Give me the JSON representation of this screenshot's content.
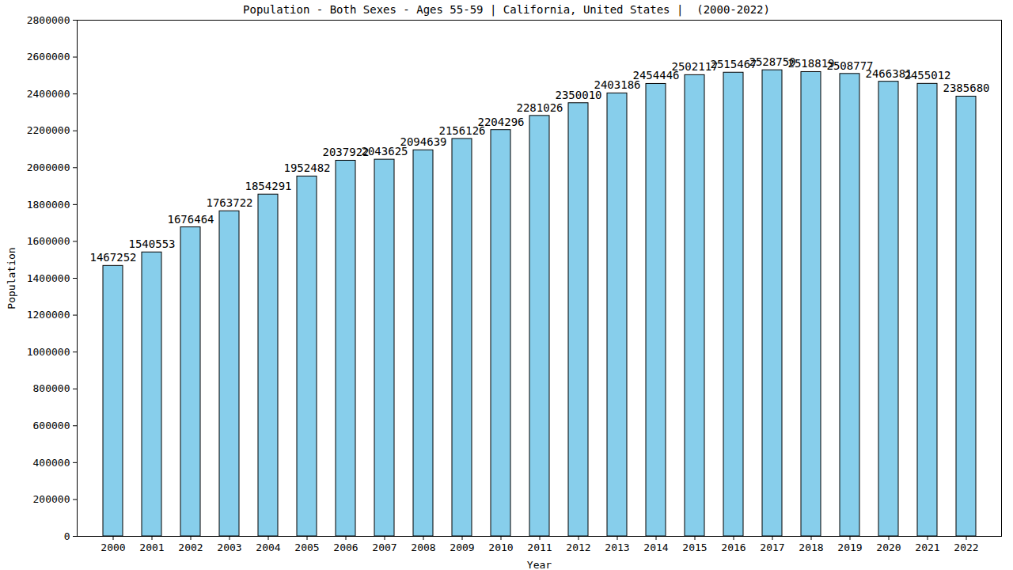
{
  "chart_data": {
    "type": "bar",
    "title": "Population - Both Sexes - Ages 55-59 | California, United States |  (2000-2022)",
    "x_label": "Year",
    "y_label": "Population",
    "categories": [
      "2000",
      "2001",
      "2002",
      "2003",
      "2004",
      "2005",
      "2006",
      "2007",
      "2008",
      "2009",
      "2010",
      "2011",
      "2012",
      "2013",
      "2014",
      "2015",
      "2016",
      "2017",
      "2018",
      "2019",
      "2020",
      "2021",
      "2022"
    ],
    "values": [
      1467252,
      1540553,
      1676464,
      1763722,
      1854291,
      1952482,
      2037922,
      2043625,
      2094639,
      2156126,
      2204296,
      2281026,
      2350010,
      2403186,
      2454446,
      2502117,
      2515467,
      2528750,
      2518819,
      2508777,
      2466381,
      2455012,
      2385680
    ],
    "color": "#87ceeb",
    "ylim": [
      0,
      2800000
    ],
    "yticks": [
      0,
      200000,
      400000,
      600000,
      800000,
      1000000,
      1200000,
      1400000,
      1600000,
      1800000,
      2000000,
      2200000,
      2400000,
      2600000,
      2800000
    ],
    "grid": false,
    "data_labels": true
  }
}
